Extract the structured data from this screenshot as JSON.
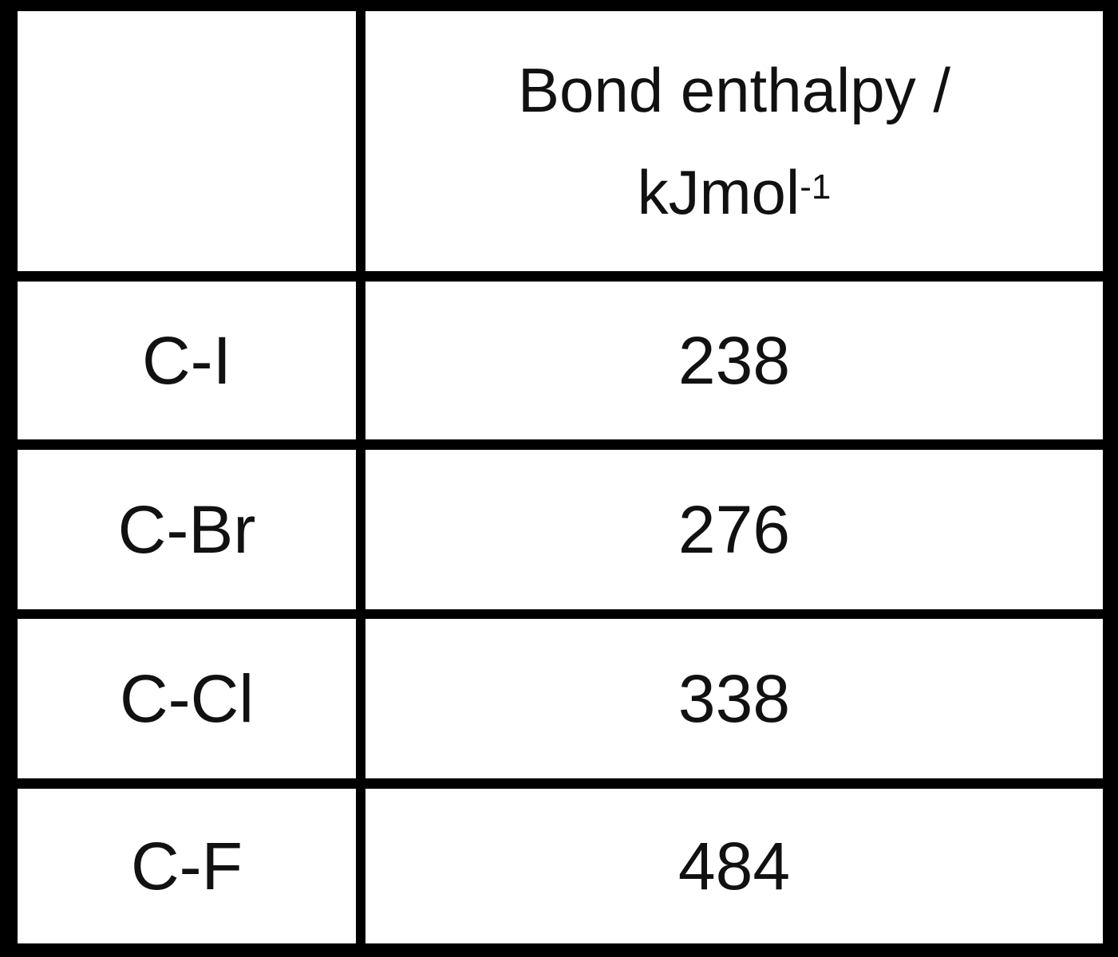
{
  "table": {
    "header": {
      "col1": "",
      "col2_line1": "Bond enthalpy /",
      "col2_line2": "kJmol",
      "col2_sup": "-1"
    },
    "rows": [
      {
        "bond": "C-I",
        "enthalpy": "238"
      },
      {
        "bond": "C-Br",
        "enthalpy": "276"
      },
      {
        "bond": "C-Cl",
        "enthalpy": "338"
      },
      {
        "bond": "C-F",
        "enthalpy": "484"
      }
    ]
  }
}
